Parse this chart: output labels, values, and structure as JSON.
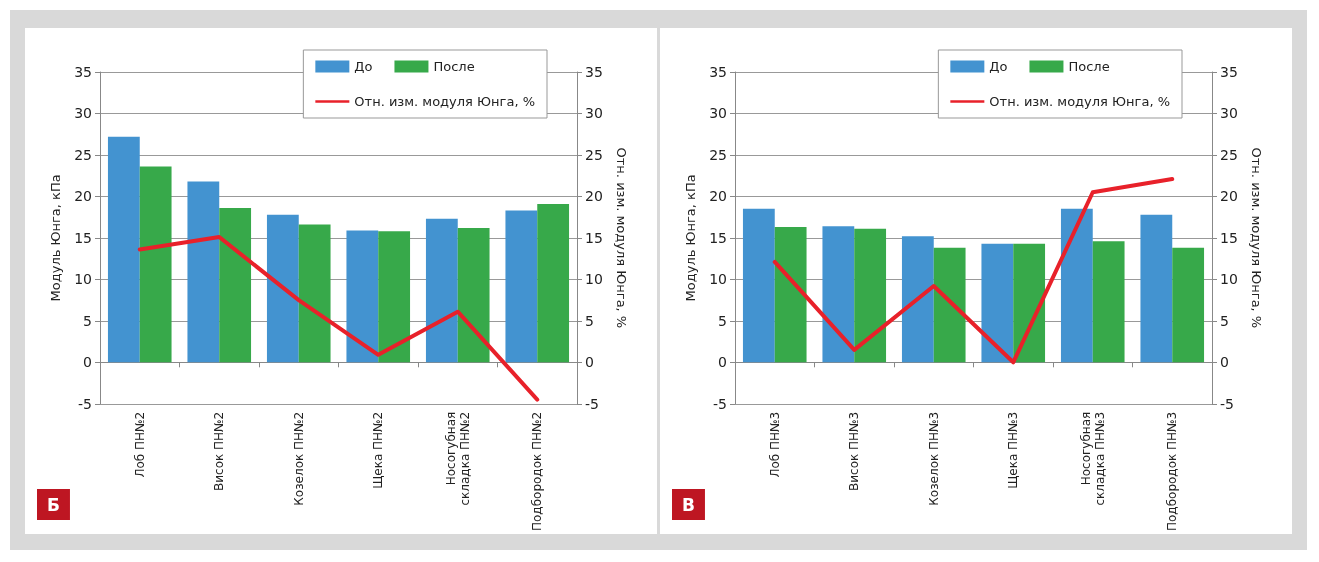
{
  "chart_data": [
    {
      "type": "bar",
      "title": "Б",
      "ylabel": "Модуль Юнга, кПа",
      "y2label": "Отн. изм. модуля Юнга, %",
      "categories": [
        "Лоб ПН№2",
        "Висок ПН№2",
        "Козелок ПН№2",
        "Щека ПН№2",
        "Носогубная складка ПН№2",
        "Подбородок ПН№2"
      ],
      "series": [
        {
          "name": "До",
          "color": "#4393d0",
          "values": [
            27.2,
            21.8,
            17.8,
            15.9,
            17.3,
            18.3
          ]
        },
        {
          "name": "После",
          "color": "#37a94a",
          "values": [
            23.6,
            18.6,
            16.6,
            15.8,
            16.2,
            19.1
          ]
        },
        {
          "name": "Отн. изм. модуля Юнга, %",
          "type": "line",
          "axis": "y2",
          "color": "#e8212a",
          "values": [
            13.6,
            15.1,
            7.5,
            0.9,
            6.1,
            -4.5
          ]
        }
      ],
      "ylim": [
        -5,
        35
      ],
      "yticks": [
        -5,
        0,
        5,
        10,
        15,
        20,
        25,
        30,
        35
      ],
      "y2lim": [
        -5,
        35
      ],
      "y2ticks": [
        -5,
        0,
        5,
        10,
        15,
        20,
        25,
        30,
        35
      ],
      "grid": "y",
      "legend": "top right",
      "marker": "none",
      "line_style": "solid"
    },
    {
      "type": "bar",
      "title": "В",
      "ylabel": "Модуль Юнга, кПа",
      "y2label": "Отн. изм. модуля Юнга, %",
      "categories": [
        "Лоб ПН№3",
        "Висок ПН№3",
        "Козелок ПН№3",
        "Щека ПН№3",
        "Носогубная складка ПН№3",
        "Подбородок ПН№3"
      ],
      "series": [
        {
          "name": "До",
          "color": "#4393d0",
          "values": [
            18.5,
            16.4,
            15.2,
            14.3,
            18.5,
            17.8
          ]
        },
        {
          "name": "После",
          "color": "#37a94a",
          "values": [
            16.3,
            16.1,
            13.8,
            14.3,
            14.6,
            13.8
          ]
        },
        {
          "name": "Отн. изм. модуля Юнга, %",
          "type": "line",
          "axis": "y2",
          "color": "#e8212a",
          "values": [
            12.1,
            1.5,
            9.2,
            0.0,
            20.5,
            22.1
          ]
        }
      ],
      "ylim": [
        -5,
        35
      ],
      "yticks": [
        -5,
        0,
        5,
        10,
        15,
        20,
        25,
        30,
        35
      ],
      "y2lim": [
        -5,
        35
      ],
      "y2ticks": [
        -5,
        0,
        5,
        10,
        15,
        20,
        25,
        30,
        35
      ],
      "grid": "y",
      "legend": "top right",
      "marker": "none",
      "line_style": "solid"
    }
  ]
}
